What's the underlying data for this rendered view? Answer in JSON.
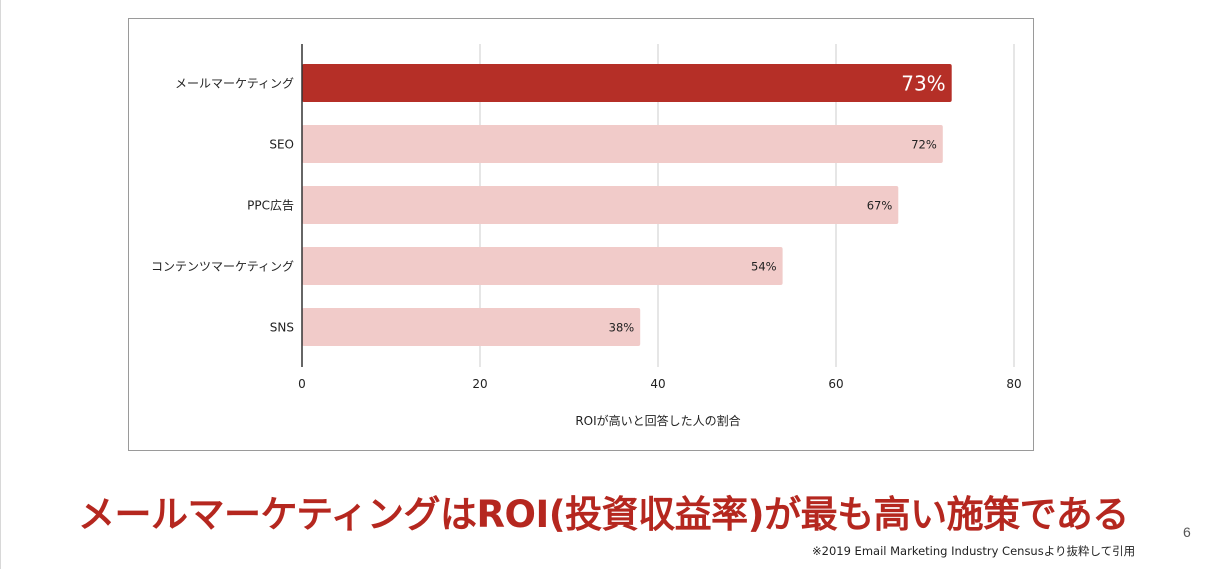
{
  "chart_data": {
    "type": "bar",
    "orientation": "horizontal",
    "categories": [
      "メールマーケティング",
      "SEO",
      "PPC広告",
      "コンテンツマーケティング",
      "SNS"
    ],
    "values": [
      73,
      72,
      67,
      54,
      38
    ],
    "data_labels": [
      "73%",
      "72%",
      "67%",
      "54%",
      "38%"
    ],
    "highlight_index": 0,
    "xlabel": "ROIが高いと回答した人の割合",
    "ylabel": "",
    "xlim": [
      0,
      80
    ],
    "x_ticks": [
      "0",
      "20",
      "40",
      "60",
      "80"
    ],
    "grid": "vertical",
    "colors": {
      "highlight": "#b52f27",
      "normal": "#f1cbc9",
      "grid": "#cccccc",
      "axis": "#333333"
    }
  },
  "headline": "メールマーケティングはROI(投資収益率)が最も高い施策である",
  "page_number": "6",
  "source_note": "※2019 Email Marketing Industry Censusより抜粋して引用"
}
